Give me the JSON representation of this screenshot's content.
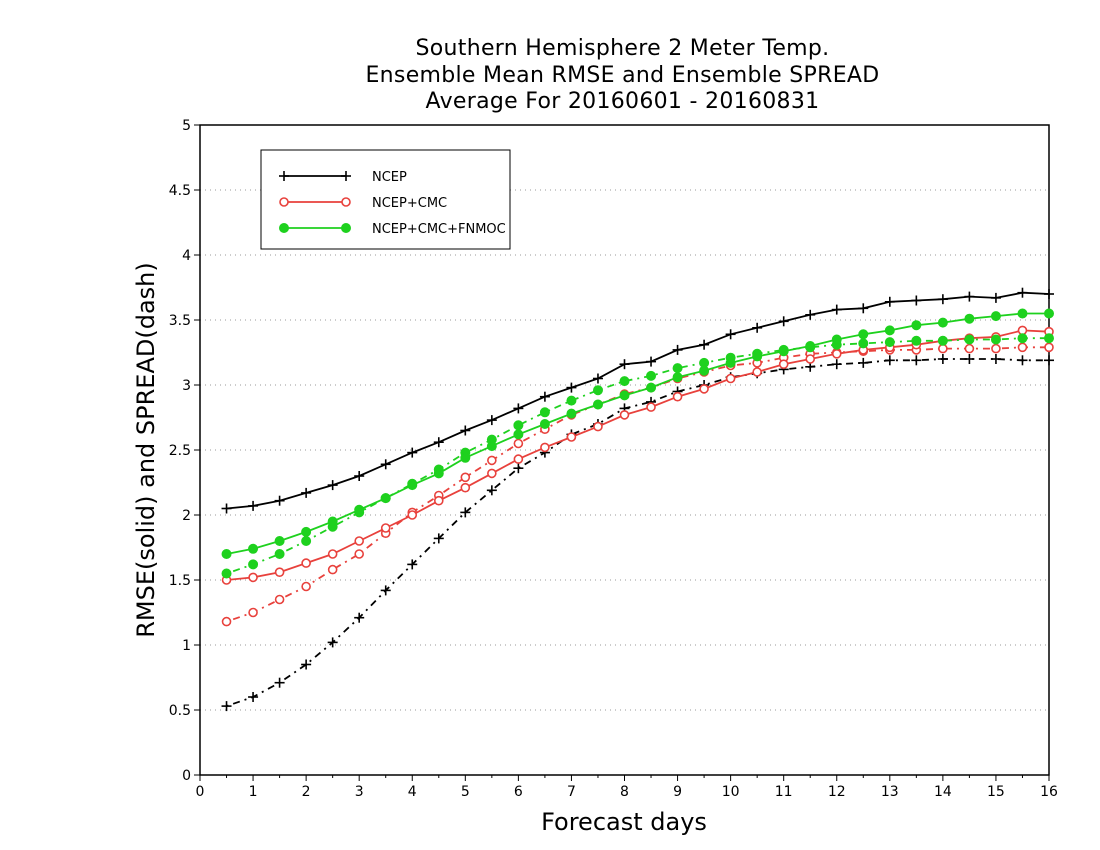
{
  "titles": [
    "Southern Hemisphere 2 Meter Temp.",
    "Ensemble Mean RMSE and Ensemble SPREAD",
    "Average For 20160601 - 20160831"
  ],
  "chart_data": {
    "type": "line",
    "xlabel": "Forecast days",
    "ylabel": "RMSE(solid) and SPREAD(dash)",
    "xlim": [
      0,
      16
    ],
    "ylim": [
      0,
      5
    ],
    "xticks": [
      "0",
      "1",
      "2",
      "3",
      "4",
      "5",
      "6",
      "7",
      "8",
      "9",
      "10",
      "11",
      "12",
      "13",
      "14",
      "15",
      "16"
    ],
    "yticks": [
      "0",
      "0.5",
      "1",
      "1.5",
      "2",
      "2.5",
      "3",
      "3.5",
      "4",
      "4.5",
      "5"
    ],
    "grid": "horizontal dotted",
    "legend_position": "top-left",
    "x": [
      0.5,
      1,
      1.5,
      2,
      2.5,
      3,
      3.5,
      4,
      4.5,
      5,
      5.5,
      6,
      6.5,
      7,
      7.5,
      8,
      8.5,
      9,
      9.5,
      10,
      10.5,
      11,
      11.5,
      12,
      12.5,
      13,
      13.5,
      14,
      14.5,
      15,
      15.5,
      16
    ],
    "series": [
      {
        "name": "NCEP",
        "color": "#000000",
        "marker": "plus",
        "rmse": [
          2.05,
          2.07,
          2.11,
          2.17,
          2.23,
          2.3,
          2.39,
          2.48,
          2.56,
          2.65,
          2.73,
          2.82,
          2.91,
          2.98,
          3.05,
          3.16,
          3.18,
          3.27,
          3.31,
          3.39,
          3.44,
          3.49,
          3.54,
          3.58,
          3.59,
          3.64,
          3.65,
          3.66,
          3.68,
          3.67,
          3.71,
          3.7
        ],
        "spread": [
          0.53,
          0.6,
          0.71,
          0.85,
          1.02,
          1.21,
          1.42,
          1.62,
          1.82,
          2.02,
          2.19,
          2.36,
          2.48,
          2.62,
          2.7,
          2.82,
          2.87,
          2.95,
          3.0,
          3.06,
          3.09,
          3.12,
          3.14,
          3.16,
          3.17,
          3.19,
          3.19,
          3.2,
          3.2,
          3.2,
          3.19,
          3.19
        ]
      },
      {
        "name": "NCEP+CMC",
        "color": "#e8413c",
        "marker": "open-circle",
        "rmse": [
          1.5,
          1.52,
          1.56,
          1.63,
          1.7,
          1.8,
          1.9,
          2.0,
          2.11,
          2.21,
          2.32,
          2.43,
          2.52,
          2.6,
          2.68,
          2.77,
          2.83,
          2.91,
          2.97,
          3.05,
          3.1,
          3.16,
          3.2,
          3.24,
          3.27,
          3.29,
          3.31,
          3.34,
          3.36,
          3.37,
          3.42,
          3.41
        ],
        "spread": [
          1.18,
          1.25,
          1.35,
          1.45,
          1.58,
          1.7,
          1.86,
          2.02,
          2.15,
          2.29,
          2.42,
          2.55,
          2.66,
          2.77,
          2.85,
          2.93,
          2.98,
          3.05,
          3.1,
          3.15,
          3.17,
          3.21,
          3.24,
          3.25,
          3.26,
          3.27,
          3.27,
          3.28,
          3.28,
          3.28,
          3.29,
          3.29
        ]
      },
      {
        "name": "NCEP+CMC+FNMOC",
        "color": "#1ed11e",
        "marker": "filled-circle",
        "rmse": [
          1.7,
          1.74,
          1.8,
          1.87,
          1.95,
          2.04,
          2.13,
          2.23,
          2.32,
          2.44,
          2.53,
          2.62,
          2.7,
          2.78,
          2.85,
          2.92,
          2.98,
          3.06,
          3.11,
          3.17,
          3.22,
          3.26,
          3.3,
          3.35,
          3.39,
          3.42,
          3.46,
          3.48,
          3.51,
          3.53,
          3.55,
          3.55
        ],
        "spread": [
          1.55,
          1.62,
          1.7,
          1.8,
          1.91,
          2.02,
          2.13,
          2.24,
          2.35,
          2.48,
          2.58,
          2.69,
          2.79,
          2.88,
          2.96,
          3.03,
          3.07,
          3.13,
          3.17,
          3.21,
          3.24,
          3.27,
          3.29,
          3.31,
          3.32,
          3.33,
          3.34,
          3.34,
          3.35,
          3.35,
          3.36,
          3.36
        ]
      }
    ]
  }
}
